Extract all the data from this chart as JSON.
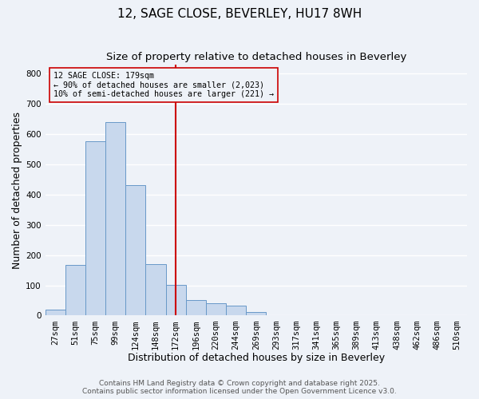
{
  "title": "12, SAGE CLOSE, BEVERLEY, HU17 8WH",
  "subtitle": "Size of property relative to detached houses in Beverley",
  "xlabel": "Distribution of detached houses by size in Beverley",
  "ylabel": "Number of detached properties",
  "bar_labels": [
    "27sqm",
    "51sqm",
    "75sqm",
    "99sqm",
    "124sqm",
    "148sqm",
    "172sqm",
    "196sqm",
    "220sqm",
    "244sqm",
    "269sqm",
    "293sqm",
    "317sqm",
    "341sqm",
    "365sqm",
    "389sqm",
    "413sqm",
    "438sqm",
    "462sqm",
    "486sqm",
    "510sqm"
  ],
  "bar_values": [
    20,
    168,
    577,
    640,
    432,
    170,
    102,
    51,
    40,
    33,
    12,
    0,
    0,
    0,
    0,
    0,
    0,
    0,
    0,
    0,
    2
  ],
  "bar_color": "#c8d8ed",
  "bar_edge_color": "#6898c8",
  "vline_x": 6,
  "vline_color": "#cc0000",
  "annotation_title": "12 SAGE CLOSE: 179sqm",
  "annotation_line1": "← 90% of detached houses are smaller (2,023)",
  "annotation_line2": "10% of semi-detached houses are larger (221) →",
  "annotation_box_edge": "#cc0000",
  "ylim": [
    0,
    830
  ],
  "yticks": [
    0,
    100,
    200,
    300,
    400,
    500,
    600,
    700,
    800
  ],
  "footer1": "Contains HM Land Registry data © Crown copyright and database right 2025.",
  "footer2": "Contains public sector information licensed under the Open Government Licence v3.0.",
  "background_color": "#eef2f8",
  "plot_bg_color": "#eef2f8",
  "grid_color": "#ffffff",
  "title_fontsize": 11,
  "subtitle_fontsize": 9.5,
  "axis_label_fontsize": 9,
  "tick_fontsize": 7.5,
  "footer_fontsize": 6.5
}
